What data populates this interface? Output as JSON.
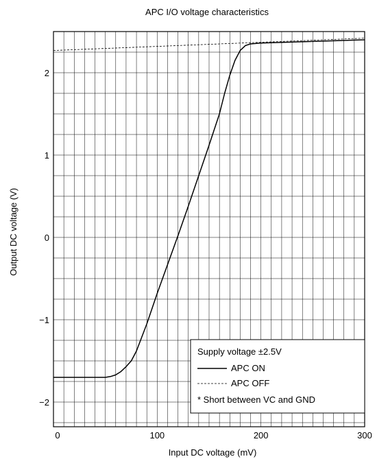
{
  "chart_data": {
    "type": "line",
    "title": "APC I/O voltage characteristics",
    "xlabel": "Input DC voltage (mV)",
    "ylabel": "Output DC voltage (V)",
    "xlim": [
      0,
      300
    ],
    "ylim": [
      -2.3,
      2.5
    ],
    "x_ticks": [
      0,
      100,
      200,
      300
    ],
    "y_ticks": [
      2,
      1,
      0,
      -1,
      -2
    ],
    "y_tick_labels": [
      "2",
      "1",
      "0",
      "−1",
      "−2"
    ],
    "grid": true,
    "legend_position": "bottom-right",
    "series": [
      {
        "name": "APC ON",
        "style": "solid",
        "x": [
          0,
          50,
          55,
          60,
          65,
          70,
          75,
          80,
          90,
          100,
          110,
          120,
          130,
          140,
          150,
          160,
          165,
          170,
          175,
          180,
          185,
          190,
          200,
          250,
          300
        ],
        "y": [
          -1.7,
          -1.7,
          -1.69,
          -1.67,
          -1.63,
          -1.57,
          -1.5,
          -1.38,
          -1.05,
          -0.68,
          -0.33,
          0.02,
          0.38,
          0.75,
          1.12,
          1.5,
          1.75,
          1.97,
          2.15,
          2.27,
          2.33,
          2.35,
          2.36,
          2.38,
          2.4
        ]
      },
      {
        "name": "APC OFF",
        "style": "dashed",
        "x": [
          0,
          300
        ],
        "y": [
          2.27,
          2.42
        ]
      }
    ],
    "legend": {
      "header": "Supply voltage ±2.5V",
      "note": "* Short between VC and GND"
    }
  }
}
